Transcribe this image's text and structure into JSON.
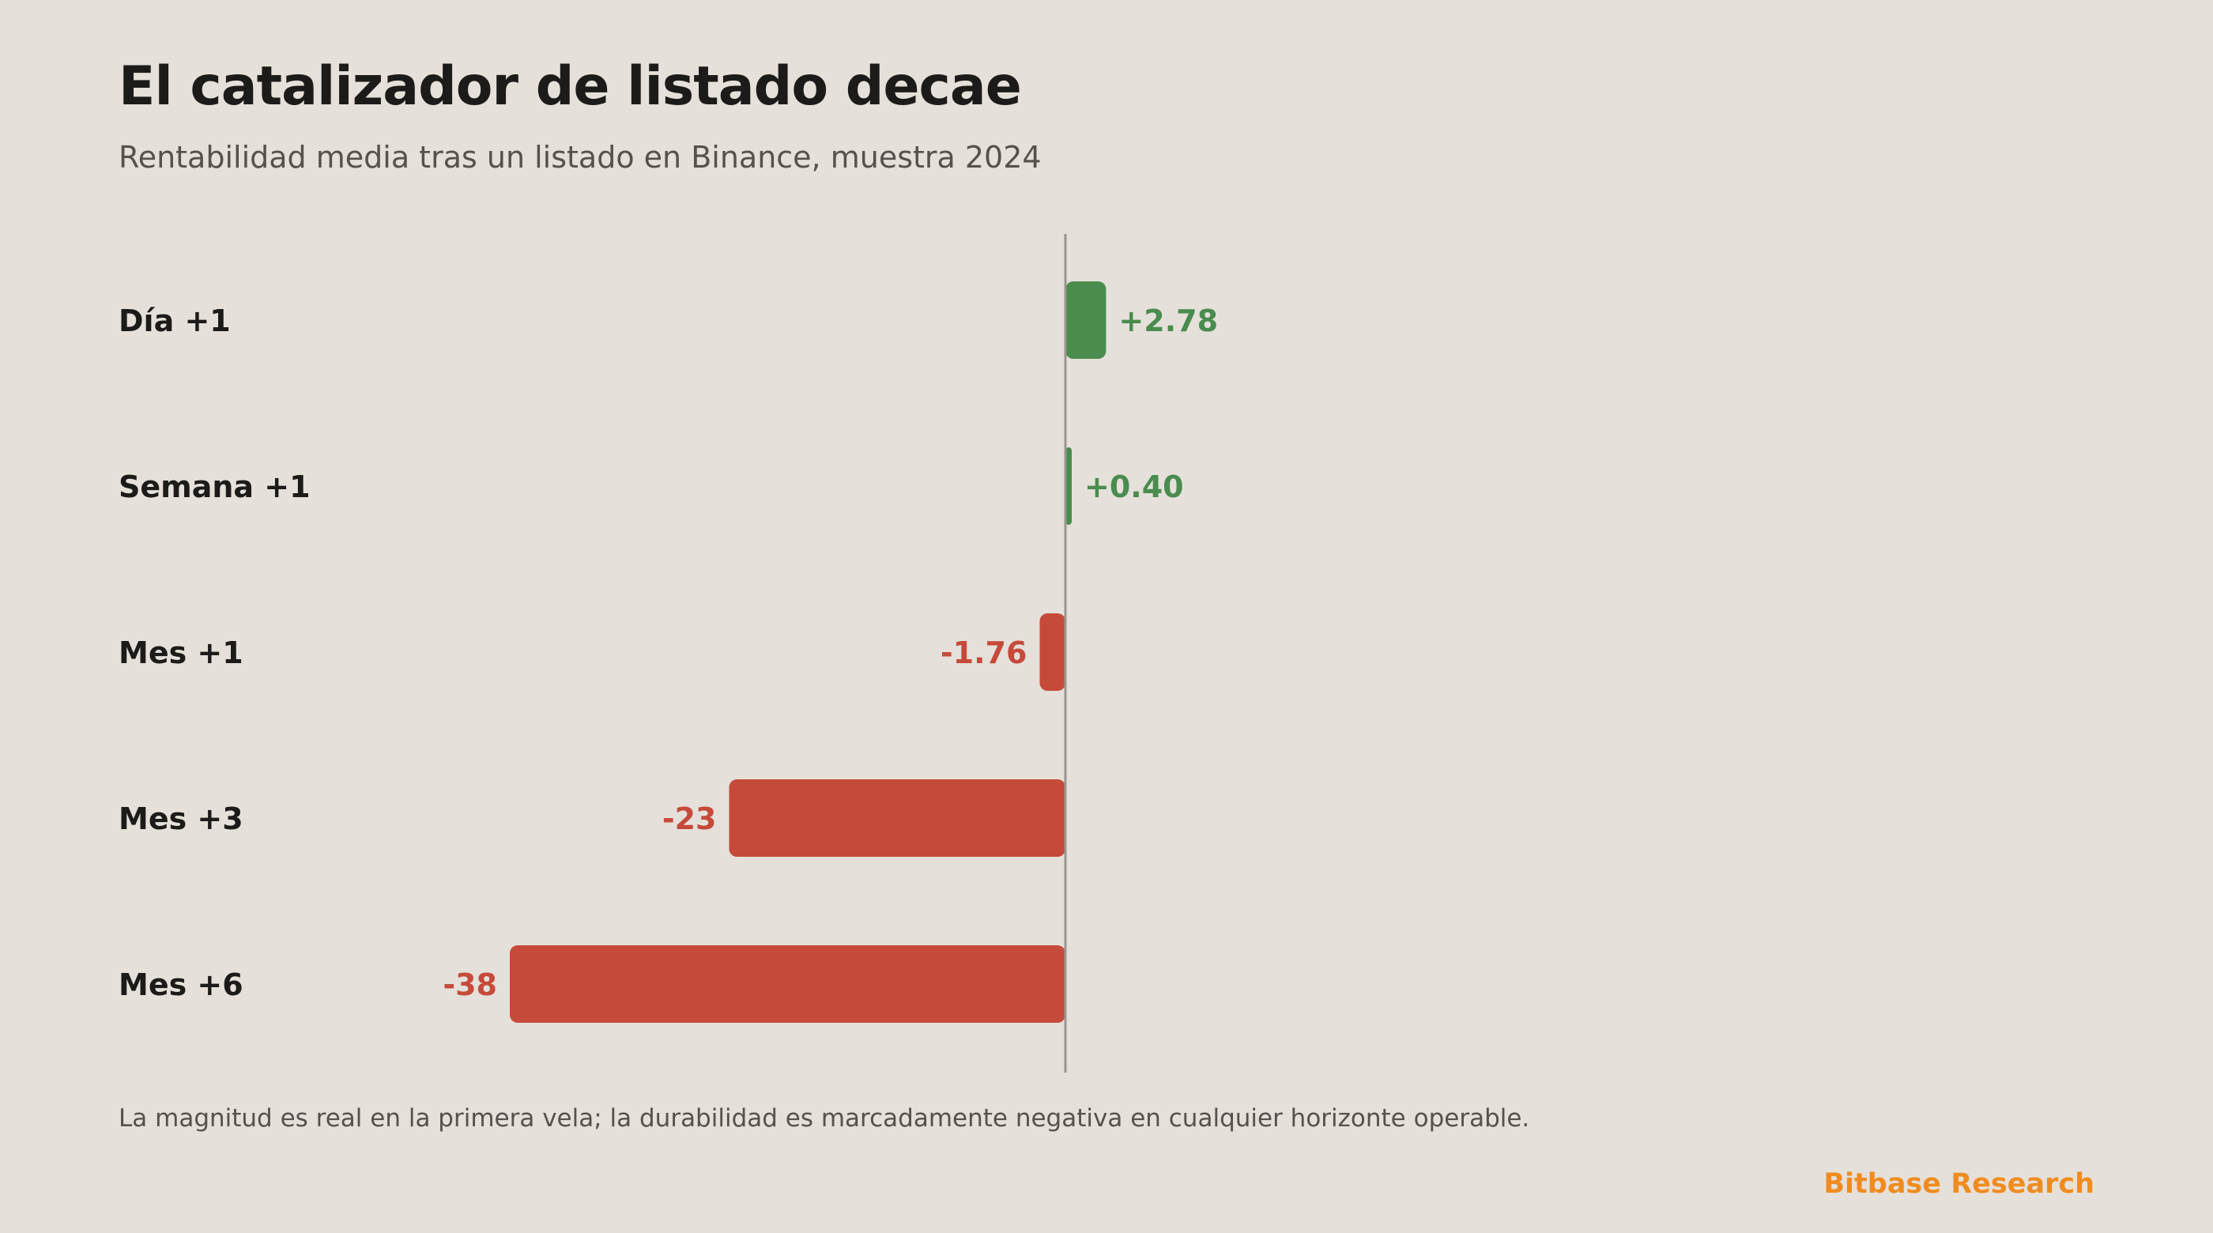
{
  "header": {
    "title": "El catalizador de listado decae",
    "subtitle": "Rentabilidad media tras un listado en Binance, muestra 2024"
  },
  "chart_data": {
    "type": "bar",
    "orientation": "horizontal",
    "title": "El catalizador de listado decae",
    "subtitle": "Rentabilidad media tras un listado en Binance, muestra 2024",
    "categories": [
      "Día +1",
      "Semana +1",
      "Mes +1",
      "Mes +3",
      "Mes +6"
    ],
    "values": [
      2.78,
      0.4,
      -1.76,
      -23,
      -38
    ],
    "value_labels": [
      "+2.78",
      "+0.40",
      "-1.76",
      "-23",
      "-38"
    ],
    "xlim": [
      -38,
      2.78
    ],
    "grid": false,
    "legend": "none",
    "colors": {
      "positive": "#4a8b4e",
      "negative": "#c64a3a",
      "axis": "#9a9590"
    }
  },
  "footer": {
    "note": "La magnitud es real en la primera vela; la durabilidad es marcadamente negativa en cualquier horizonte operable.",
    "brand": "Bitbase Research"
  }
}
